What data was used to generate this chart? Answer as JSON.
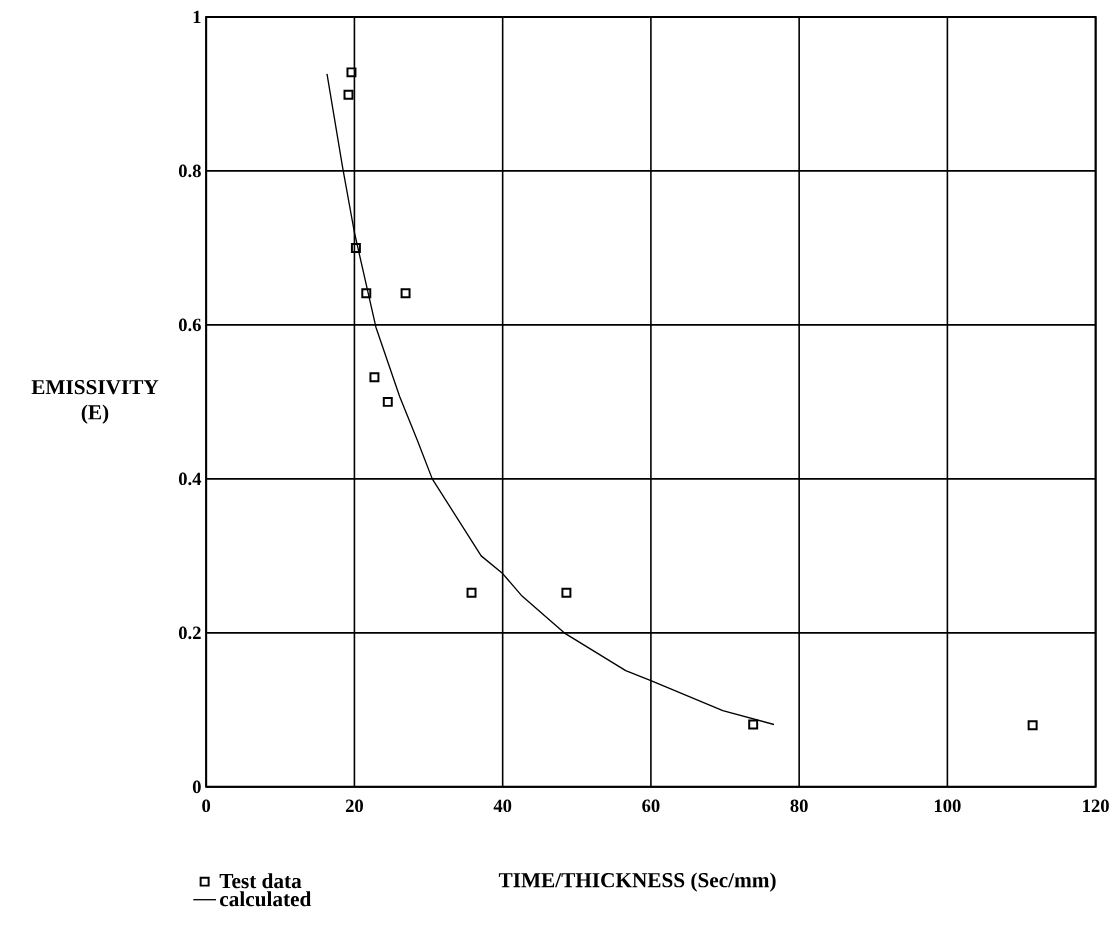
{
  "chart_data": {
    "type": "scatter",
    "xlabel": "TIME/THICKNESS (Sec/mm)",
    "ylabel": "EMISSIVITY (E)",
    "xlim": [
      0,
      120
    ],
    "ylim": [
      0,
      1
    ],
    "xticks": [
      0,
      20,
      40,
      60,
      80,
      100,
      120
    ],
    "yticks": [
      0,
      0.2,
      0.4,
      0.6,
      0.8,
      1
    ],
    "grid": true,
    "legend": "bottom left",
    "series": [
      {
        "name": "Test data",
        "marker": "square",
        "color": "#000000",
        "x": [
          19.6,
          19.2,
          20.2,
          21.6,
          26.9,
          22.7,
          24.5,
          35.8,
          48.6,
          73.8,
          111.5
        ],
        "values": [
          0.928,
          0.899,
          0.7,
          0.641,
          0.641,
          0.532,
          0.5,
          0.252,
          0.252,
          0.081,
          0.08
        ]
      },
      {
        "name": "calculated",
        "type": "line",
        "line_style": "solid",
        "color": "#000000",
        "x": [
          16.3,
          18.4,
          20,
          22.9,
          26.1,
          28.5,
          30.5,
          37.1,
          40,
          42.5,
          48.3,
          56.6,
          60,
          69.7,
          76.6
        ],
        "values": [
          0.926,
          0.805,
          0.72,
          0.597,
          0.507,
          0.45,
          0.4,
          0.3,
          0.277,
          0.249,
          0.2,
          0.151,
          0.138,
          0.099,
          0.081
        ]
      }
    ]
  }
}
